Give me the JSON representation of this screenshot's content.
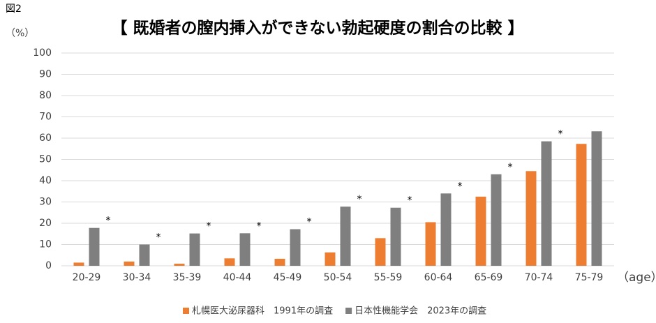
{
  "figure_label": "図2",
  "chart_data": {
    "type": "bar",
    "title": "【  既婚者の膣内挿入ができない勃起硬度の割合の比較 】",
    "y_label": "（%）",
    "x_label": "（age）",
    "categories": [
      "20-29",
      "30-34",
      "35-39",
      "40-44",
      "45-49",
      "50-54",
      "55-59",
      "60-64",
      "65-69",
      "70-74",
      "75-79"
    ],
    "series": [
      {
        "name": "札幌医大泌尿器科　1991年の調査",
        "color": "#ed7d31",
        "values": [
          1.5,
          2,
          1,
          3.5,
          3.3,
          6.3,
          13,
          20.5,
          32.5,
          44.5,
          57.3
        ]
      },
      {
        "name": "日本性機能学会　2023年の調査",
        "color": "#7f7f7f",
        "values": [
          17.8,
          10,
          15.2,
          15.3,
          17.2,
          27.8,
          27.3,
          34,
          43,
          58.5,
          63.2
        ]
      }
    ],
    "annotations": [
      {
        "text": "*",
        "x": "20-29"
      },
      {
        "text": "*",
        "x": "30-34"
      },
      {
        "text": "*",
        "x": "35-39"
      },
      {
        "text": "*",
        "x": "40-44"
      },
      {
        "text": "*",
        "x": "45-49"
      },
      {
        "text": "*",
        "x": "50-54"
      },
      {
        "text": "*",
        "x": "55-59"
      },
      {
        "text": "*",
        "x": "60-64"
      },
      {
        "text": "*",
        "x": "65-69"
      },
      {
        "text": "*",
        "x": "70-74"
      }
    ],
    "ylim": [
      0,
      100
    ],
    "yticks": [
      0,
      10,
      20,
      30,
      40,
      50,
      60,
      70,
      80,
      90,
      100
    ],
    "grid": true,
    "legend": "bottom"
  }
}
